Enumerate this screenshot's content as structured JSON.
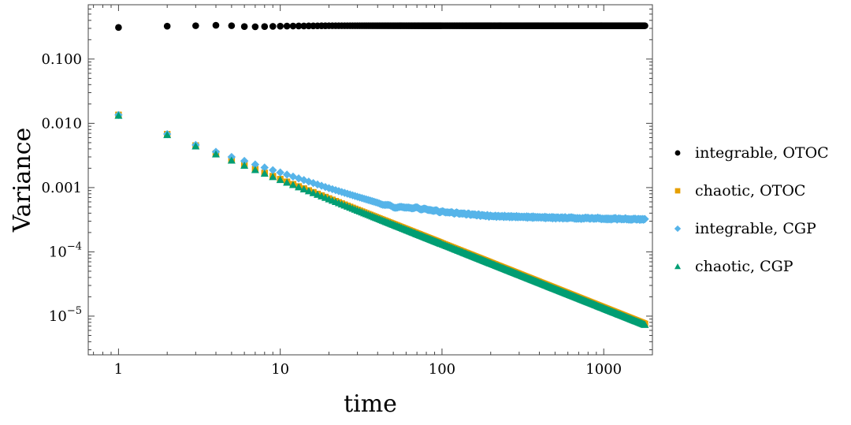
{
  "chart_data": {
    "type": "scatter",
    "xlabel": "time",
    "ylabel": "Variance",
    "x_scale": "log",
    "y_scale": "log",
    "xlim": [
      0.65,
      2000
    ],
    "ylim": [
      2.5e-06,
      0.7
    ],
    "x_ticks": [
      {
        "value": 1,
        "label": "1"
      },
      {
        "value": 10,
        "label": "10"
      },
      {
        "value": 100,
        "label": "100"
      },
      {
        "value": 1000,
        "label": "1000"
      }
    ],
    "y_ticks": [
      {
        "value": 0.1,
        "label": "0.100",
        "base": "",
        "exp": ""
      },
      {
        "value": 0.01,
        "label": "0.010",
        "base": "",
        "exp": ""
      },
      {
        "value": 0.001,
        "label": "0.001",
        "base": "",
        "exp": ""
      },
      {
        "value": 0.0001,
        "label": "",
        "base": "10",
        "exp": "−4"
      },
      {
        "value": 1e-05,
        "label": "",
        "base": "10",
        "exp": "−5"
      }
    ],
    "grid": false,
    "legend_position": "right",
    "series": [
      {
        "name": "integrable, OTOC",
        "marker": "circle",
        "color": "#000000",
        "model": "otoc",
        "t_max": 1800,
        "points": [
          [
            1,
            0.31
          ],
          [
            2,
            0.325
          ],
          [
            3,
            0.33
          ],
          [
            4,
            0.335
          ],
          [
            5,
            0.33
          ],
          [
            6,
            0.32
          ],
          [
            7,
            0.318
          ],
          [
            8,
            0.32
          ],
          [
            10,
            0.325
          ],
          [
            20,
            0.33
          ],
          [
            50,
            0.33
          ],
          [
            100,
            0.33
          ],
          [
            1000,
            0.33
          ],
          [
            1800,
            0.33
          ]
        ]
      },
      {
        "name": "chaotic, OTOC",
        "marker": "square",
        "color": "#e69f00",
        "model": "power",
        "t_max": 1800,
        "points": [
          [
            1,
            0.0135
          ],
          [
            10,
            0.00135
          ],
          [
            100,
            0.000135
          ],
          [
            1000,
            1.35e-05
          ],
          [
            1800,
            8.1e-06
          ]
        ]
      },
      {
        "name": "integrable, CGP",
        "marker": "diamond",
        "color": "#56b4e9",
        "model": "cgp",
        "t_max": 1800,
        "points": [
          [
            1,
            0.0135
          ],
          [
            2,
            0.0068
          ],
          [
            3,
            0.0046
          ],
          [
            4,
            0.0036
          ],
          [
            5,
            0.003
          ],
          [
            6,
            0.0026
          ],
          [
            8,
            0.00205
          ],
          [
            10,
            0.00172
          ],
          [
            20,
            0.00098
          ],
          [
            30,
            0.00072
          ],
          [
            40,
            0.00058
          ],
          [
            50,
            0.0005
          ],
          [
            70,
            0.00048
          ],
          [
            100,
            0.00042
          ],
          [
            200,
            0.00036
          ],
          [
            500,
            0.00034
          ],
          [
            1000,
            0.00033
          ],
          [
            1800,
            0.00032
          ]
        ]
      },
      {
        "name": "chaotic, CGP",
        "marker": "triangle",
        "color": "#009e73",
        "model": "power",
        "t_max": 1800,
        "points": [
          [
            1,
            0.0132
          ],
          [
            10,
            0.00132
          ],
          [
            100,
            0.000132
          ],
          [
            1000,
            1.32e-05
          ],
          [
            1800,
            7.6e-06
          ]
        ]
      }
    ]
  }
}
